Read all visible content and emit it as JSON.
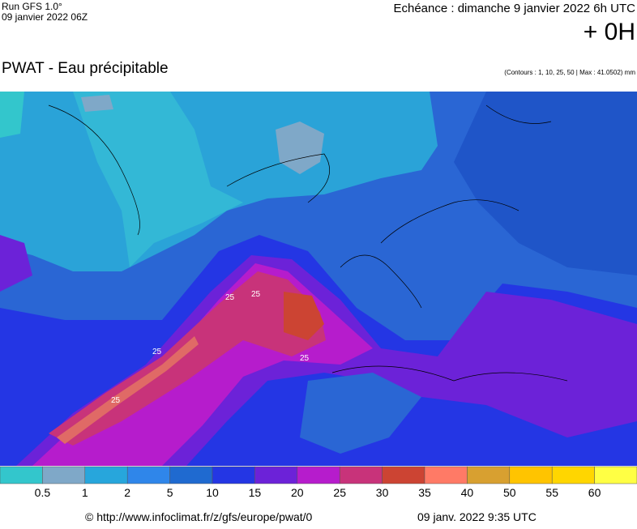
{
  "header": {
    "run": "Run GFS 1.0°",
    "run_date": "09 janvier 2022 06Z",
    "echeance": "Echéance : dimanche 9 janvier 2022 6h UTC",
    "lead": "+ 0H",
    "title": "PWAT - Eau précipitable",
    "contours": "(Contours : 1, 10, 25, 50 | Max : 41.0502) mm"
  },
  "contour_labels": [
    "25",
    "25",
    "25",
    "25",
    "25"
  ],
  "legend": {
    "colors": [
      "#33c6cc",
      "#7fa8c8",
      "#27a6dc",
      "#2f86ea",
      "#1f6ad0",
      "#2436e4",
      "#6c22d8",
      "#b61ccc",
      "#c8337a",
      "#cc4433",
      "#ff7a66",
      "#d8a030",
      "#ffc400",
      "#ffd600",
      "#ffff44"
    ],
    "labels": [
      "0.5",
      "1",
      "2",
      "5",
      "10",
      "15",
      "20",
      "25",
      "30",
      "35",
      "40",
      "50",
      "55",
      "60"
    ]
  },
  "footer": {
    "url": "© http://www.infoclimat.fr/z/gfs/europe/pwat/0",
    "date": "09 janv. 2022  9:35 UTC"
  }
}
